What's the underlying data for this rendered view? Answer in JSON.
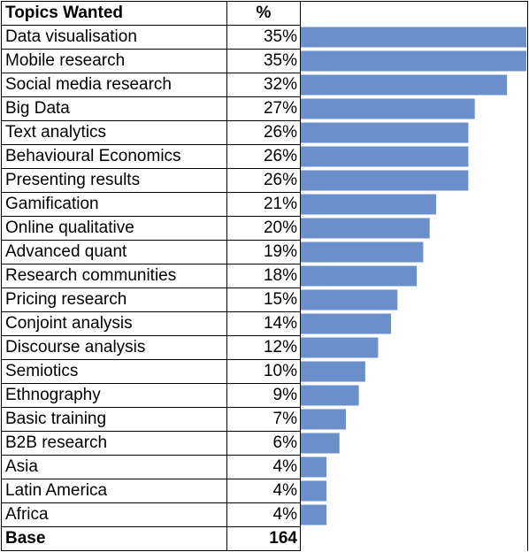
{
  "table": {
    "header_topic": "Topics Wanted",
    "header_pct": "%",
    "base_label": "Base",
    "base_value": "164"
  },
  "chart_data": {
    "type": "bar",
    "orientation": "horizontal",
    "title": "",
    "xlabel": "",
    "ylabel": "",
    "xlim": [
      0,
      35
    ],
    "grid": false,
    "bar_color": "#6a8fca",
    "categories": [
      "Data visualisation",
      "Mobile research",
      "Social media research",
      "Big Data",
      "Text analytics",
      "Behavioural Economics",
      "Presenting results",
      "Gamification",
      "Online qualitative",
      "Advanced quant",
      "Research communities",
      "Pricing research",
      "Conjoint analysis",
      "Discourse analysis",
      "Semiotics",
      "Ethnography",
      "Basic training",
      "B2B research",
      "Asia",
      "Latin America",
      "Africa"
    ],
    "labels": [
      "35%",
      "35%",
      "32%",
      "27%",
      "26%",
      "26%",
      "26%",
      "21%",
      "20%",
      "19%",
      "18%",
      "15%",
      "14%",
      "12%",
      "10%",
      "9%",
      "7%",
      "6%",
      "4%",
      "4%",
      "4%"
    ],
    "values": [
      35,
      35,
      32,
      27,
      26,
      26,
      26,
      21,
      20,
      19,
      18,
      15,
      14,
      12,
      10,
      9,
      7,
      6,
      4,
      4,
      4
    ]
  }
}
